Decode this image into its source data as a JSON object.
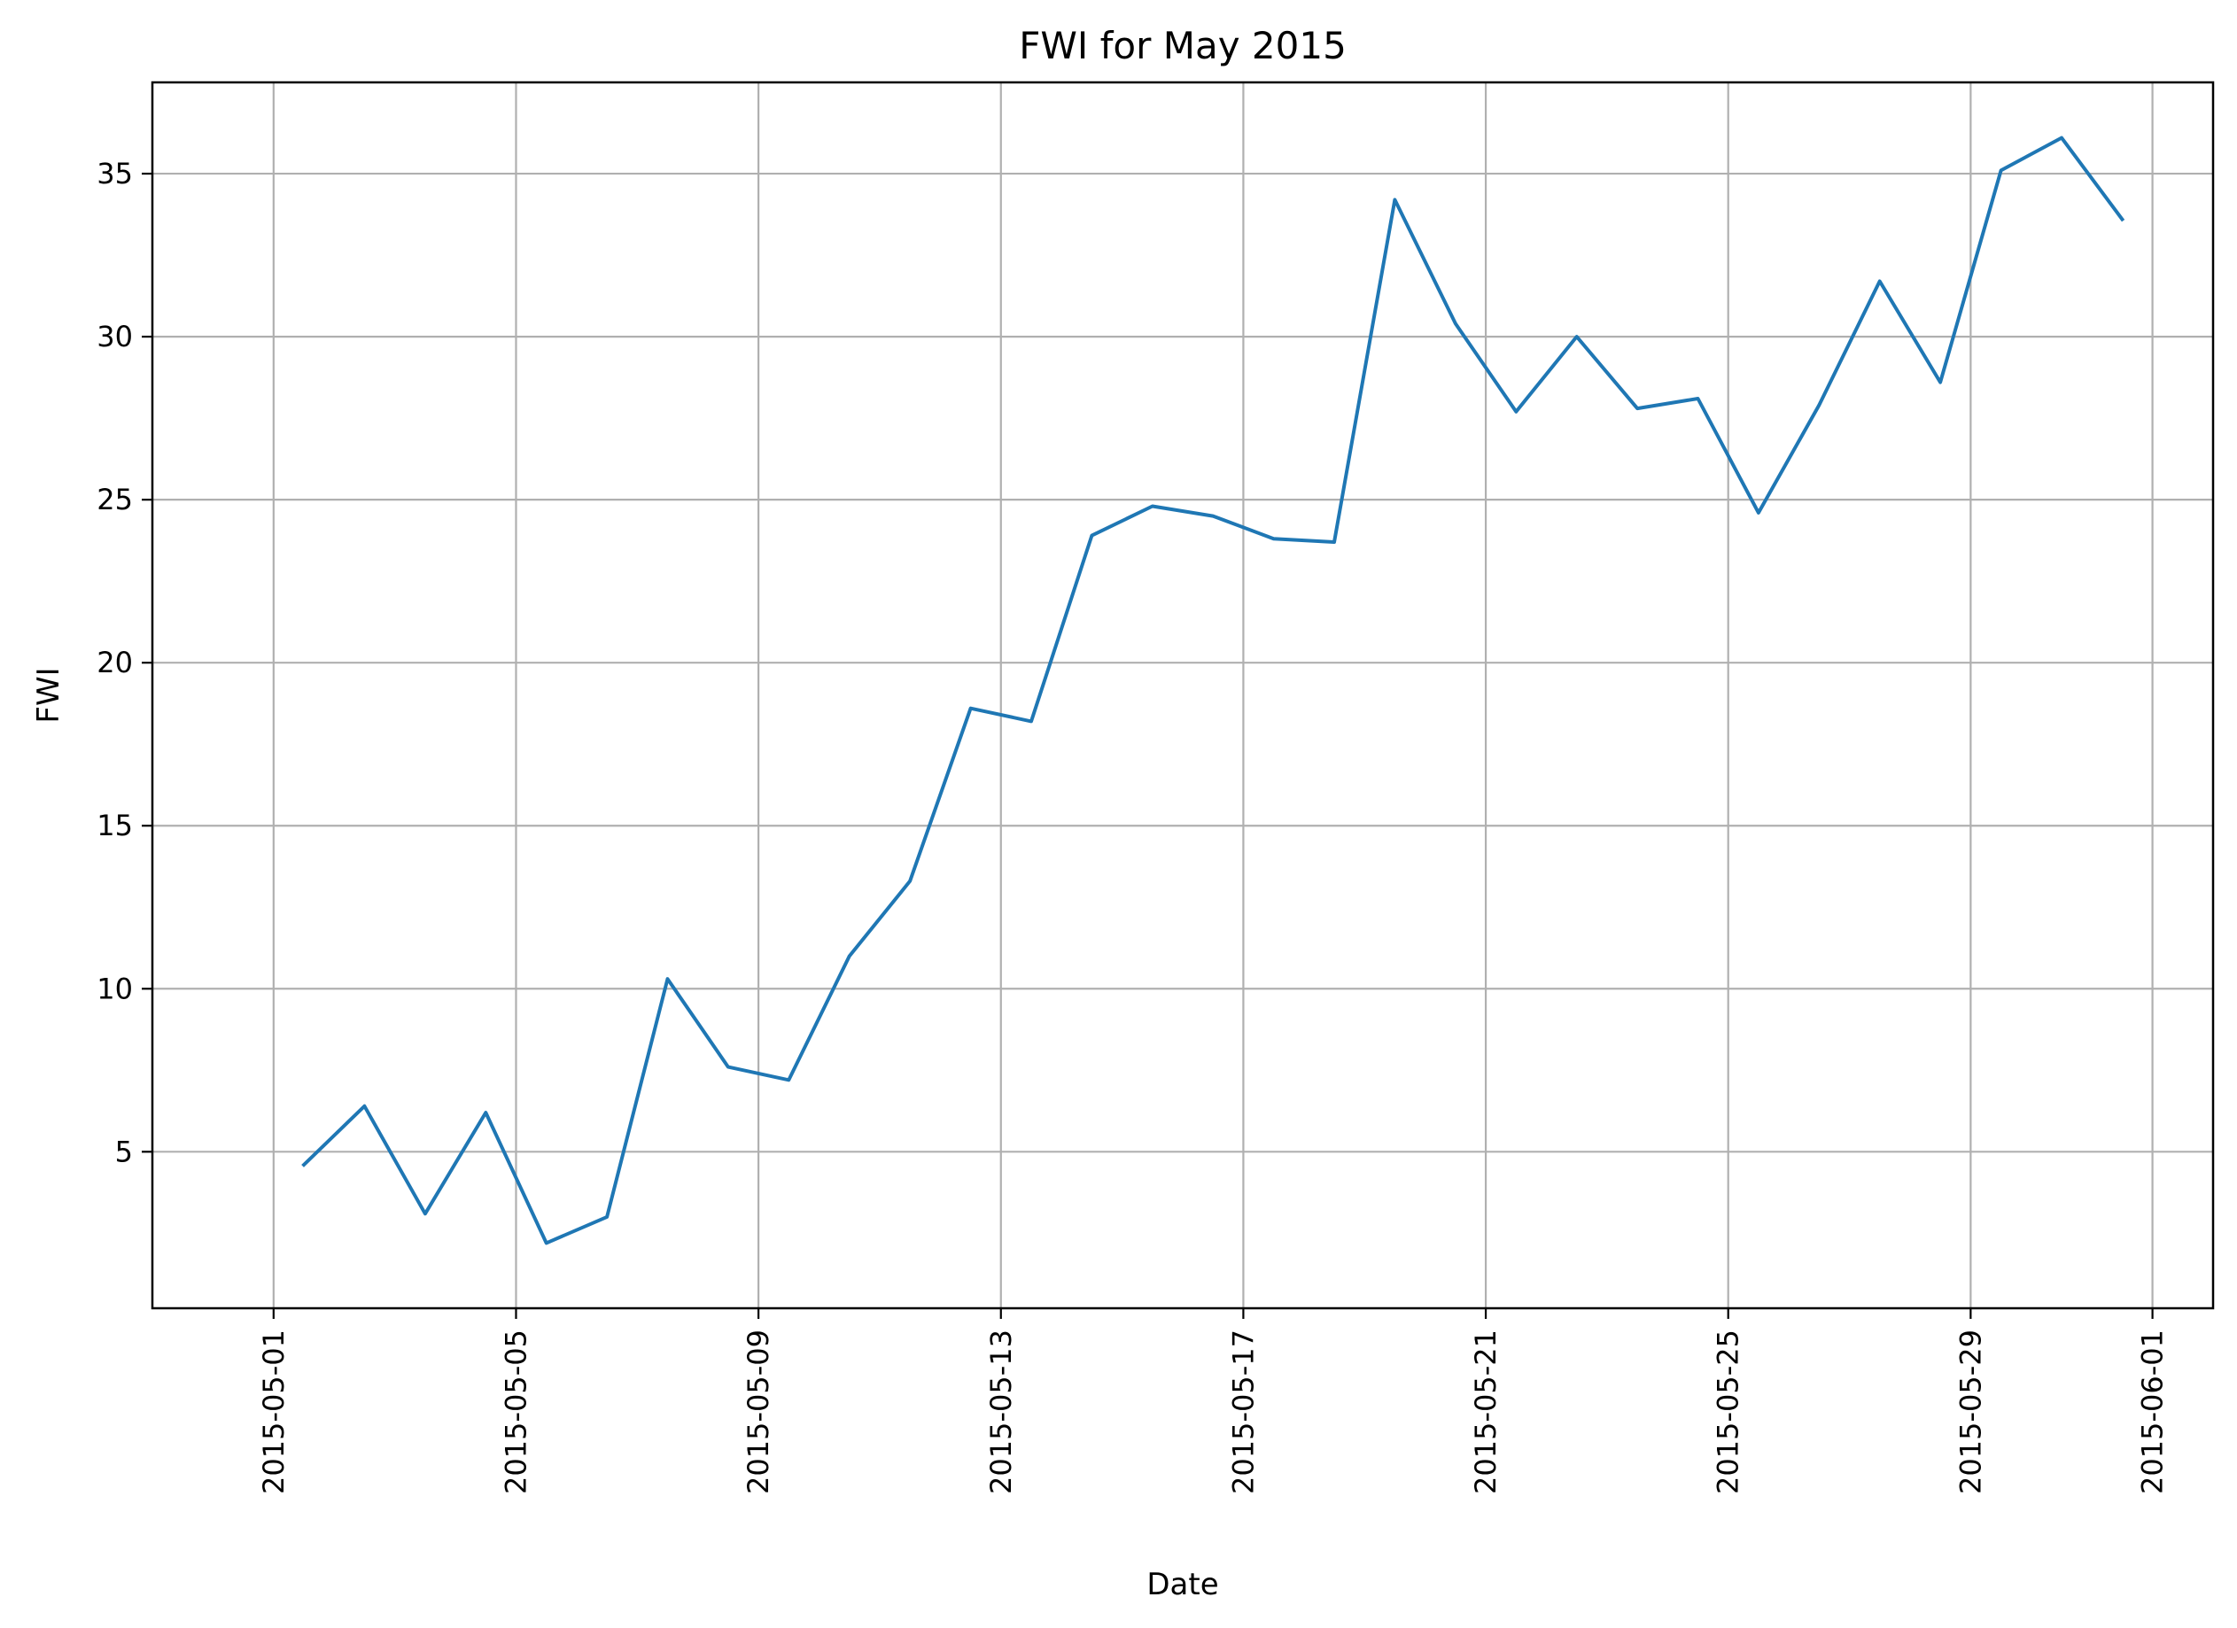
{
  "chart_data": {
    "type": "line",
    "title": "FWI for May 2015",
    "xlabel": "Date",
    "ylabel": "FWI",
    "grid": true,
    "xlim": [
      "2015-04-29T00:00",
      "2015-06-02T00:00"
    ],
    "ylim": [
      0.2,
      37.8
    ],
    "x_ticks": [
      "2015-05-01",
      "2015-05-05",
      "2015-05-09",
      "2015-05-13",
      "2015-05-17",
      "2015-05-21",
      "2015-05-25",
      "2015-05-29",
      "2015-06-01"
    ],
    "y_ticks": [
      5,
      10,
      15,
      20,
      25,
      30,
      35
    ],
    "series": [
      {
        "color": "#1f77b4",
        "x": [
          "2015-05-01T12:00",
          "2015-05-02T12:00",
          "2015-05-03T12:00",
          "2015-05-04T12:00",
          "2015-05-05T12:00",
          "2015-05-06T12:00",
          "2015-05-07T12:00",
          "2015-05-08T12:00",
          "2015-05-09T12:00",
          "2015-05-10T12:00",
          "2015-05-11T12:00",
          "2015-05-12T12:00",
          "2015-05-13T12:00",
          "2015-05-14T12:00",
          "2015-05-15T12:00",
          "2015-05-16T12:00",
          "2015-05-17T12:00",
          "2015-05-18T12:00",
          "2015-05-19T12:00",
          "2015-05-20T12:00",
          "2015-05-21T12:00",
          "2015-05-22T12:00",
          "2015-05-23T12:00",
          "2015-05-24T12:00",
          "2015-05-25T12:00",
          "2015-05-26T12:00",
          "2015-05-27T12:00",
          "2015-05-28T12:00",
          "2015-05-29T12:00",
          "2015-05-30T12:00",
          "2015-05-31T12:00"
        ],
        "y": [
          4.6,
          6.4,
          3.1,
          6.2,
          2.2,
          3.0,
          10.3,
          7.6,
          7.2,
          11.0,
          13.3,
          18.6,
          18.2,
          23.9,
          24.8,
          24.5,
          23.8,
          23.7,
          34.2,
          30.4,
          27.7,
          30.0,
          27.8,
          28.1,
          24.6,
          27.9,
          31.7,
          28.6,
          35.1,
          36.1,
          33.6
        ]
      }
    ]
  }
}
